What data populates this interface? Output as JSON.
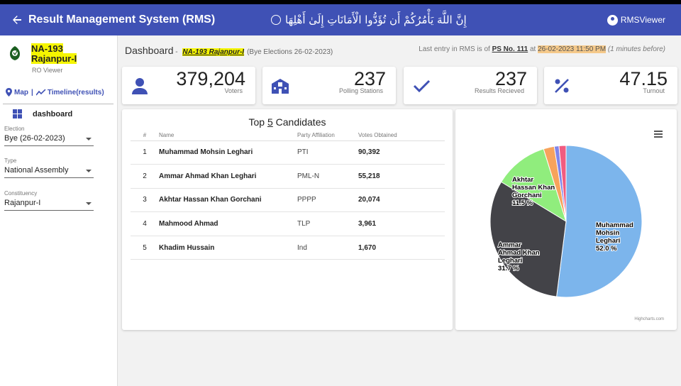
{
  "app": {
    "title": "Result Management System (RMS)",
    "verse": "إِنَّ اللَّهَ يَأْمُرُكُمْ أَن تُؤَدُّوا الْأَمَانَاتِ إِلَىٰ أَهْلِهَا",
    "user": "RMSViewer"
  },
  "sidebar": {
    "constituency_line1": "NA-193",
    "constituency_line2": "Rajanpur-I",
    "role": "RO Viewer",
    "map_link": "Map",
    "separator": "|",
    "timeline_link": "Timeline(results)",
    "nav_dashboard": "dashboard",
    "election_label": "Election",
    "election_value": "Bye (26-02-2023)",
    "type_label": "Type",
    "type_value": "National Assembly",
    "constituency_label": "Constituency",
    "constituency_value": "Rajanpur-I"
  },
  "header": {
    "page": "Dashboard",
    "dash": " - ",
    "constituency": "NA-193 Rajanpur-I",
    "election": "(Bye Elections 26-02-2023)",
    "last_entry_prefix": "Last entry in RMS is of",
    "last_entry_ps": "PS No. 111",
    "last_entry_at": "at",
    "last_entry_datetime": "26-02-2023 11:50 PM",
    "last_entry_ago": "(1 minutes before)"
  },
  "stats": [
    {
      "value": "379,204",
      "label": "Voters",
      "icon": "person-icon"
    },
    {
      "value": "237",
      "label": "Polling Stations",
      "icon": "school-icon"
    },
    {
      "value": "237",
      "label": "Results Recieved",
      "icon": "check-icon"
    },
    {
      "value": "47.15",
      "label": "Turnout",
      "icon": "percent-icon"
    }
  ],
  "table": {
    "title_prefix": "Top",
    "title_n": "5",
    "title_suffix": "Candidates",
    "headers": {
      "idx": "#",
      "name": "Name",
      "party": "Party Affiliation",
      "votes": "Votes Obtained"
    },
    "rows": [
      {
        "idx": "1",
        "name": "Muhammad Mohsin Leghari",
        "party": "PTI",
        "votes": "90,392"
      },
      {
        "idx": "2",
        "name": "Ammar Ahmad Khan Leghari",
        "party": "PML-N",
        "votes": "55,218"
      },
      {
        "idx": "3",
        "name": "Akhtar Hassan Khan Gorchani",
        "party": "PPPP",
        "votes": "20,074"
      },
      {
        "idx": "4",
        "name": "Mahmood Ahmad",
        "party": "TLP",
        "votes": "3,961"
      },
      {
        "idx": "5",
        "name": "Khadim Hussain",
        "party": "Ind",
        "votes": "1,670"
      }
    ]
  },
  "chart_credit": "Highcharts.com",
  "chart_data": {
    "type": "pie",
    "slices": [
      {
        "label": "Muhammad Mohsin Leghari",
        "percent": 52.0,
        "color": "#7cb5ec",
        "label_text": "52.0 %"
      },
      {
        "label": "Ammar Ahmad Khan Leghari",
        "percent": 31.7,
        "color": "#434348",
        "label_text": "31.7 %"
      },
      {
        "label": "Akhtar Hassan Khan Gorchani",
        "percent": 11.5,
        "color": "#90ed7d",
        "label_text": "11.5 %"
      },
      {
        "label": "Mahmood Ahmad",
        "percent": 2.3,
        "color": "#f7a35c",
        "label_text": ""
      },
      {
        "label": "Khadim Hussain",
        "percent": 1.0,
        "color": "#8085e9",
        "label_text": ""
      },
      {
        "label": "",
        "percent": 1.5,
        "color": "#f15c80",
        "label_text": ""
      }
    ]
  },
  "colors": {
    "primary": "#3f51b5",
    "highlight": "#f5f500",
    "datetime_highlight": "#f5c98a"
  }
}
